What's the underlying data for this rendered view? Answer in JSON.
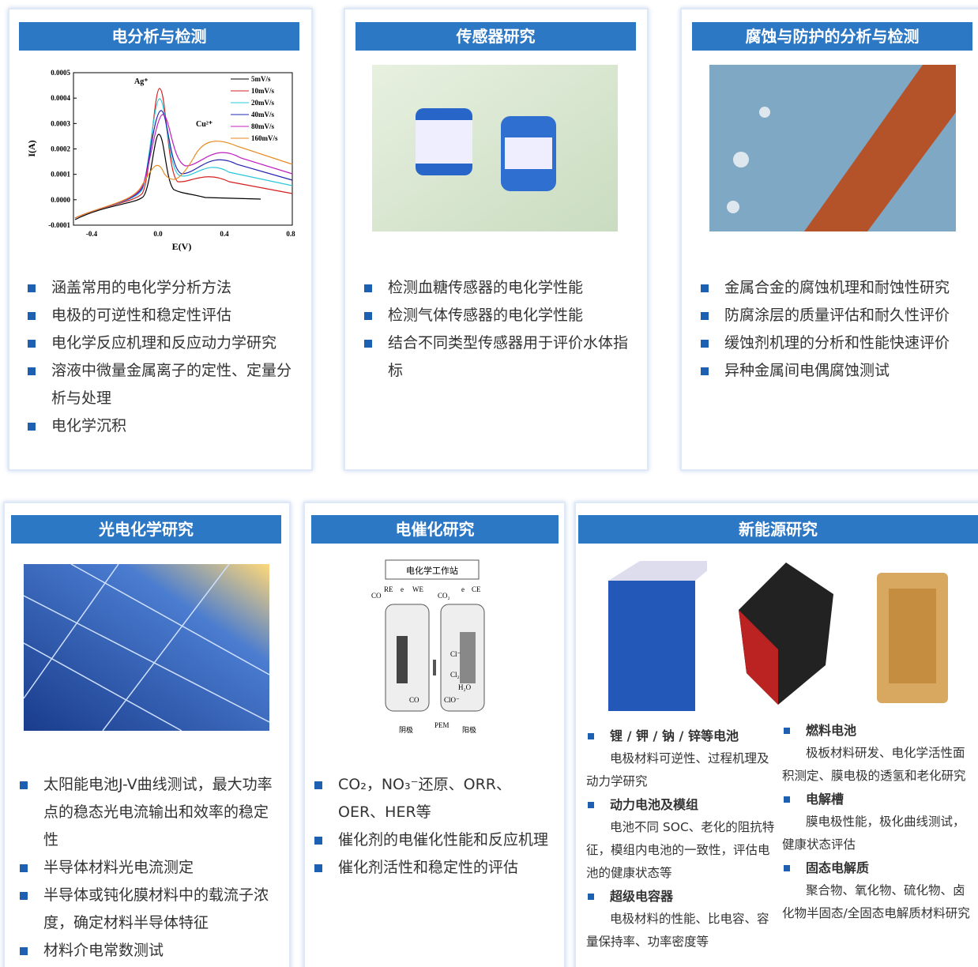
{
  "cards": [
    {
      "title": "电分析与检测",
      "items": [
        "涵盖常用的电化学分析方法",
        "电极的可逆性和稳定性评估",
        "电化学反应机理和反应动力学研究",
        "溶液中微量金属离子的定性、定量分析与处理",
        "电化学沉积"
      ],
      "chart": {
        "ylabel": "I(A)",
        "xlabel": "E(V)",
        "yticks": [
          "0.0005",
          "0.0004",
          "0.0003",
          "0.0002",
          "0.0001",
          "0.0000",
          "-0.0001"
        ],
        "xticks": [
          "-0.4",
          "0.0",
          "0.4",
          "0.8"
        ],
        "legend": [
          "5mV/s",
          "10mV/s",
          "20mV/s",
          "40mV/s",
          "80mV/s",
          "160mV/s"
        ],
        "annotations": [
          "Ag⁺",
          "Cu²⁺"
        ]
      }
    },
    {
      "title": "传感器研究",
      "items": [
        "检测血糖传感器的电化学性能",
        "检测气体传感器的电化学性能",
        "结合不同类型传感器用于评价水体指标"
      ]
    },
    {
      "title": "腐蚀与防护的分析与检测",
      "items": [
        "金属合金的腐蚀机理和耐蚀性研究",
        "防腐涂层的质量评估和耐久性评价",
        "缓蚀剂机理的分析和性能快速评价",
        "异种金属间电偶腐蚀测试"
      ]
    },
    {
      "title": "光电化学研究",
      "items": [
        "太阳能电池J-V曲线测试，最大功率点的稳态光电流输出和效率的稳定性",
        "半导体材料光电流测定",
        "半导体或钝化膜材料中的载流子浓度，确定材料半导体特征",
        "材料介电常数测试"
      ]
    },
    {
      "title": "电催化研究",
      "items": [
        "CO₂，NO₃⁻还原、ORR、OER、HER等",
        "催化剂的电催化性能和反应机理",
        "催化剂活性和稳定性的评估"
      ],
      "diagram": {
        "station": "电化学工作站",
        "labels": [
          "CO",
          "RE",
          "e",
          "WE",
          "CO₂",
          "e",
          "CE",
          "Cl⁻",
          "Cl₂",
          "H₂O",
          "CO",
          "ClO⁻",
          "阴极",
          "PEM",
          "阳极"
        ]
      }
    },
    {
      "title": "新能源研究",
      "left": [
        {
          "heading": "锂 / 钾 / 钠 / 锌等电池",
          "text": "电极材料可逆性、过程机理及动力学研究"
        },
        {
          "heading": "动力电池及模组",
          "text": "电池不同 SOC、老化的阻抗特征，模组内电池的一致性，评估电池的健康状态等"
        },
        {
          "heading": "超级电容器",
          "text": "电极材料的性能、比电容、容量保持率、功率密度等"
        }
      ],
      "right": [
        {
          "heading": "燃料电池",
          "text": "极板材料研发、电化学活性面积测定、膜电极的透氢和老化研究"
        },
        {
          "heading": "电解槽",
          "text": "膜电极性能，极化曲线测试，健康状态评估"
        },
        {
          "heading": "固态电解质",
          "text": "聚合物、氧化物、硫化物、卤化物半固态/全固态电解质材料研究"
        }
      ]
    }
  ]
}
